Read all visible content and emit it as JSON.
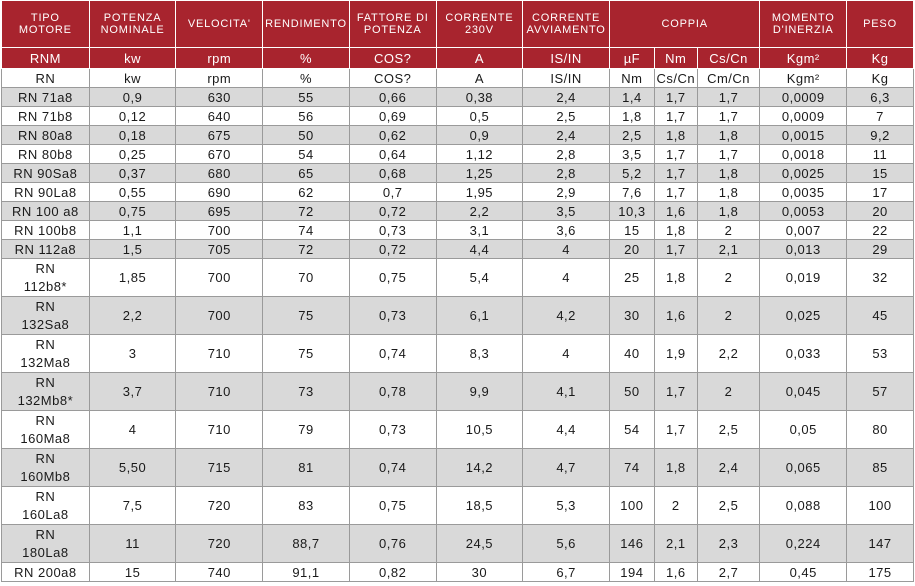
{
  "header": [
    {
      "key": "tipo",
      "text": "TIPO\nMOTORE"
    },
    {
      "key": "potenza",
      "text": "POTENZA\nNOMINALE"
    },
    {
      "key": "velocita",
      "text": "VELOCITA'"
    },
    {
      "key": "rendimento",
      "text": "RENDIMENTO"
    },
    {
      "key": "fattore",
      "text": "FATTORE DI\nPOTENZA"
    },
    {
      "key": "corrente",
      "text": "CORRENTE\n230V"
    },
    {
      "key": "avviamento",
      "text": "CORRENTE\nAVVIAMENTO"
    },
    {
      "key": "coppia",
      "text": "COPPIA"
    },
    {
      "key": "momento",
      "text": "MOMENTO\nD'INERZIA"
    },
    {
      "key": "peso",
      "text": "PESO"
    }
  ],
  "units": [
    "RNM",
    "kw",
    "rpm",
    "%",
    "COS?",
    "A",
    "IS/IN",
    "µF",
    "Nm",
    "Cs/Cn",
    "Kgm²",
    "Kg"
  ],
  "subunits": [
    "RN",
    "kw",
    "rpm",
    "%",
    "COS?",
    "A",
    "IS/IN",
    "Nm",
    "Cs/Cn",
    "Cm/Cn",
    "Kgm²",
    "Kg"
  ],
  "rows": [
    [
      "RN 71a8",
      "0,9",
      "630",
      "55",
      "0,66",
      "0,38",
      "2,4",
      "1,4",
      "1,7",
      "1,7",
      "0,0009",
      "6,3"
    ],
    [
      "RN 71b8",
      "0,12",
      "640",
      "56",
      "0,69",
      "0,5",
      "2,5",
      "1,8",
      "1,7",
      "1,7",
      "0,0009",
      "7"
    ],
    [
      "RN 80a8",
      "0,18",
      "675",
      "50",
      "0,62",
      "0,9",
      "2,4",
      "2,5",
      "1,8",
      "1,8",
      "0,0015",
      "9,2"
    ],
    [
      "RN 80b8",
      "0,25",
      "670",
      "54",
      "0,64",
      "1,12",
      "2,8",
      "3,5",
      "1,7",
      "1,7",
      "0,0018",
      "11"
    ],
    [
      "RN 90Sa8",
      "0,37",
      "680",
      "65",
      "0,68",
      "1,25",
      "2,8",
      "5,2",
      "1,7",
      "1,8",
      "0,0025",
      "15"
    ],
    [
      "RN 90La8",
      "0,55",
      "690",
      "62",
      "0,7",
      "1,95",
      "2,9",
      "7,6",
      "1,7",
      "1,8",
      "0,0035",
      "17"
    ],
    [
      "RN 100 a8",
      "0,75",
      "695",
      "72",
      "0,72",
      "2,2",
      "3,5",
      "10,3",
      "1,6",
      "1,8",
      "0,0053",
      "20"
    ],
    [
      "RN 100b8",
      "1,1",
      "700",
      "74",
      "0,73",
      "3,1",
      "3,6",
      "15",
      "1,8",
      "2",
      "0,007",
      "22"
    ],
    [
      "RN 112a8",
      "1,5",
      "705",
      "72",
      "0,72",
      "4,4",
      "4",
      "20",
      "1,7",
      "2,1",
      "0,013",
      "29"
    ],
    [
      "RN\n112b8*",
      "1,85",
      "700",
      "70",
      "0,75",
      "5,4",
      "4",
      "25",
      "1,8",
      "2",
      "0,019",
      "32"
    ],
    [
      "RN\n132Sa8",
      "2,2",
      "700",
      "75",
      "0,73",
      "6,1",
      "4,2",
      "30",
      "1,6",
      "2",
      "0,025",
      "45"
    ],
    [
      "RN\n132Ma8",
      "3",
      "710",
      "75",
      "0,74",
      "8,3",
      "4",
      "40",
      "1,9",
      "2,2",
      "0,033",
      "53"
    ],
    [
      "RN\n132Mb8*",
      "3,7",
      "710",
      "73",
      "0,78",
      "9,9",
      "4,1",
      "50",
      "1,7",
      "2",
      "0,045",
      "57"
    ],
    [
      "RN\n160Ma8",
      "4",
      "710",
      "79",
      "0,73",
      "10,5",
      "4,4",
      "54",
      "1,7",
      "2,5",
      "0,05",
      "80"
    ],
    [
      "RN\n160Mb8",
      "5,50",
      "715",
      "81",
      "0,74",
      "14,2",
      "4,7",
      "74",
      "1,8",
      "2,4",
      "0,065",
      "85"
    ],
    [
      "RN\n160La8",
      "7,5",
      "720",
      "83",
      "0,75",
      "18,5",
      "5,3",
      "100",
      "2",
      "2,5",
      "0,088",
      "100"
    ],
    [
      "RN\n180La8",
      "11",
      "720",
      "88,7",
      "0,76",
      "24,5",
      "5,6",
      "146",
      "2,1",
      "2,3",
      "0,224",
      "147"
    ],
    [
      "RN 200a8",
      "15",
      "740",
      "91,1",
      "0,82",
      "30",
      "6,7",
      "194",
      "1,6",
      "2,7",
      "0,45",
      "175"
    ]
  ]
}
